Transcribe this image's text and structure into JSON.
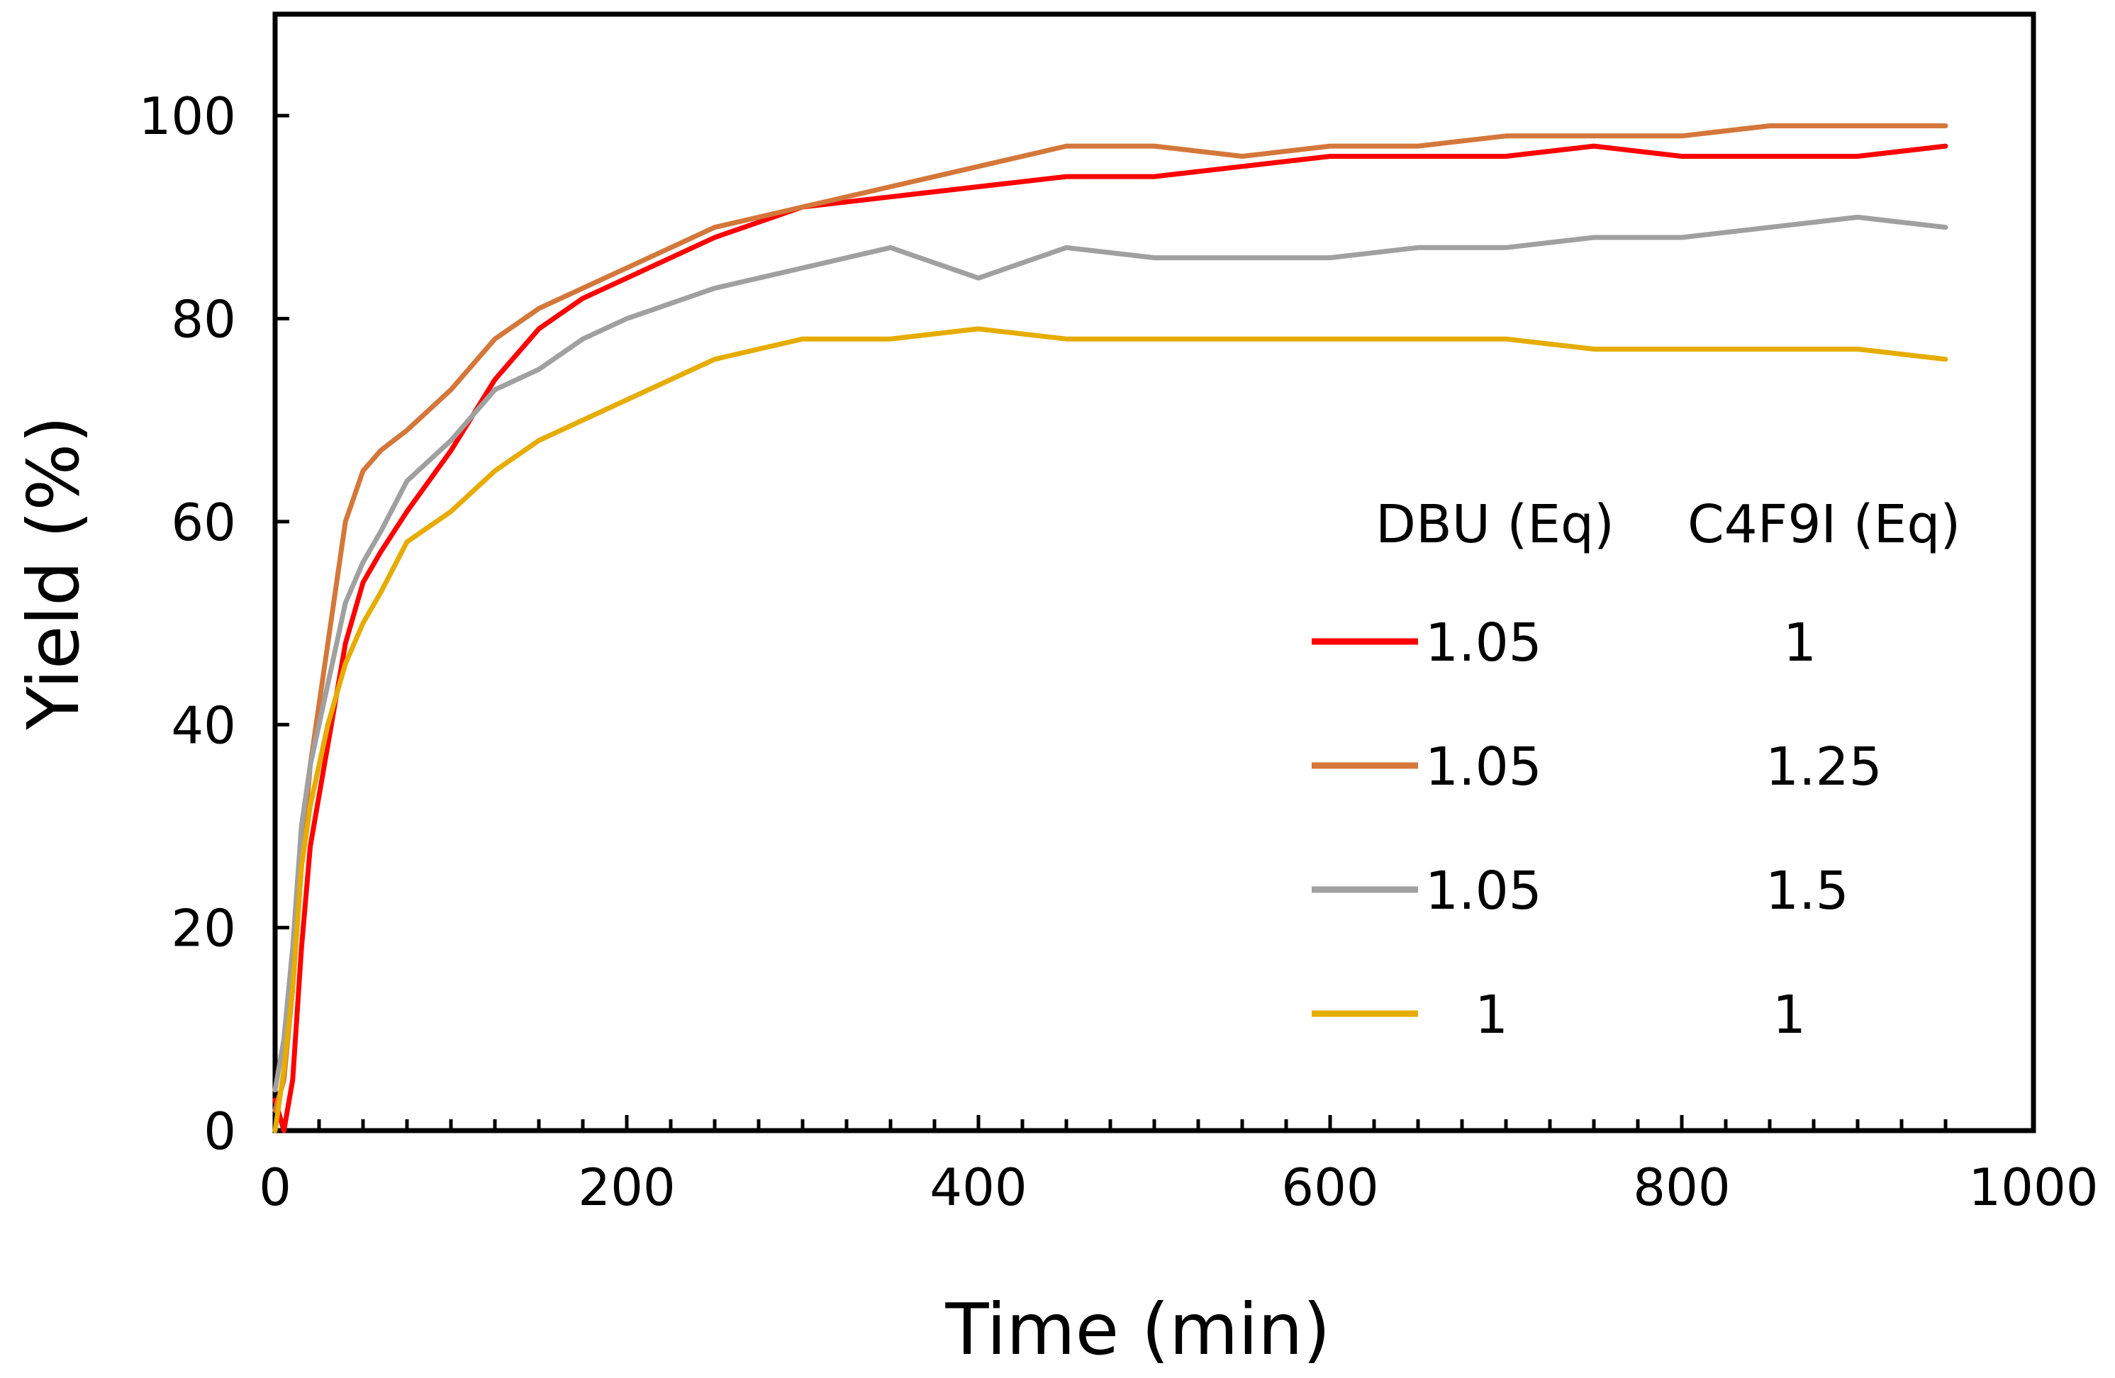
{
  "chart_data": {
    "type": "line",
    "title": "",
    "xlabel": "Time (min)",
    "ylabel": "Yield (%)",
    "xlim": [
      0,
      1000
    ],
    "ylim": [
      0,
      110
    ],
    "x_ticks": [
      0,
      200,
      400,
      600,
      800,
      1000
    ],
    "y_ticks": [
      0,
      20,
      40,
      60,
      80,
      100
    ],
    "x_tick_labels": [
      "0",
      "200",
      "400",
      "600",
      "800",
      "1000"
    ],
    "y_tick_labels": [
      "0",
      "20",
      "40",
      "60",
      "80",
      "100"
    ],
    "grid": false,
    "legend": {
      "position": "right",
      "headers": [
        "DBU (Eq)",
        "C4F9I (Eq)"
      ],
      "rows": [
        {
          "dbu": "1.05",
          "c4f9i": "1"
        },
        {
          "dbu": "1.05",
          "c4f9i": "1.25"
        },
        {
          "dbu": "1.05",
          "c4f9i": "1.5"
        },
        {
          "dbu": "1",
          "c4f9i": "1"
        }
      ]
    },
    "series": [
      {
        "name": "DBU 1.05 / C4F9I 1",
        "color": "#ff0000",
        "x": [
          0,
          5,
          10,
          15,
          20,
          30,
          40,
          50,
          60,
          75,
          100,
          125,
          150,
          175,
          200,
          250,
          300,
          350,
          400,
          450,
          500,
          550,
          600,
          650,
          700,
          750,
          800,
          850,
          900,
          950
        ],
        "y": [
          3,
          0,
          5,
          18,
          28,
          38,
          48,
          54,
          57,
          61,
          67,
          74,
          79,
          82,
          84,
          88,
          91,
          92,
          93,
          94,
          94,
          95,
          96,
          96,
          96,
          97,
          96,
          96,
          96,
          97
        ]
      },
      {
        "name": "DBU 1.05 / C4F9I 1.25",
        "color": "#d4773a",
        "x": [
          0,
          5,
          10,
          15,
          20,
          30,
          40,
          50,
          60,
          75,
          100,
          125,
          150,
          175,
          200,
          250,
          300,
          350,
          400,
          450,
          500,
          550,
          600,
          650,
          700,
          750,
          800,
          850,
          900,
          950
        ],
        "y": [
          2,
          5,
          14,
          26,
          36,
          48,
          60,
          65,
          67,
          69,
          73,
          78,
          81,
          83,
          85,
          89,
          91,
          93,
          95,
          97,
          97,
          96,
          97,
          97,
          98,
          98,
          98,
          99,
          99,
          99
        ]
      },
      {
        "name": "DBU 1.05 / C4F9I 1.5",
        "color": "#a0a0a0",
        "x": [
          0,
          5,
          10,
          15,
          20,
          30,
          40,
          50,
          60,
          75,
          100,
          125,
          150,
          175,
          200,
          250,
          300,
          350,
          400,
          450,
          500,
          550,
          600,
          650,
          700,
          750,
          800,
          850,
          900,
          950
        ],
        "y": [
          4,
          9,
          18,
          30,
          36,
          44,
          52,
          56,
          59,
          64,
          68,
          73,
          75,
          78,
          80,
          83,
          85,
          87,
          84,
          87,
          86,
          86,
          86,
          87,
          87,
          88,
          88,
          89,
          90,
          89
        ]
      },
      {
        "name": "DBU 1 / C4F9I 1",
        "color": "#e6ac00",
        "x": [
          0,
          5,
          10,
          15,
          20,
          30,
          40,
          50,
          60,
          75,
          100,
          125,
          150,
          175,
          200,
          250,
          300,
          350,
          400,
          450,
          500,
          550,
          600,
          650,
          700,
          750,
          800,
          850,
          900,
          950
        ],
        "y": [
          0,
          6,
          14,
          26,
          32,
          40,
          46,
          50,
          53,
          58,
          61,
          65,
          68,
          70,
          72,
          76,
          78,
          78,
          79,
          78,
          78,
          78,
          78,
          78,
          78,
          77,
          77,
          77,
          77,
          76
        ]
      }
    ]
  }
}
